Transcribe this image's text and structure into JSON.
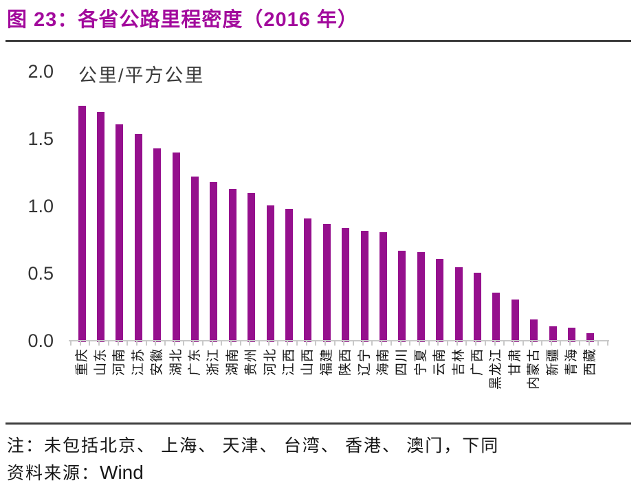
{
  "header": {
    "title": "图 23：各省公路里程密度（2016 年）"
  },
  "colors": {
    "title": "#A20A9C",
    "bar": "#95108D",
    "axis": "#C9C9C9",
    "rule": "#3D3D3D"
  },
  "chart_data": {
    "type": "bar",
    "title": "各省公路里程密度（2016 年）",
    "unit_label": "公里/平方公里",
    "xlabel": "",
    "ylabel": "公里/平方公里",
    "ylim": [
      0.0,
      2.0
    ],
    "yticks": [
      0.0,
      0.5,
      1.0,
      1.5,
      2.0
    ],
    "grid": false,
    "legend": false,
    "bar_color": "#95108D",
    "categories": [
      "重庆",
      "山东",
      "河南",
      "江苏",
      "安徽",
      "湖北",
      "广东",
      "浙江",
      "湖南",
      "贵州",
      "河北",
      "江西",
      "山西",
      "福建",
      "陕西",
      "辽宁",
      "海南",
      "四川",
      "宁夏",
      "云南",
      "吉林",
      "广西",
      "黑龙江",
      "甘肃",
      "内蒙古",
      "新疆",
      "青海",
      "西藏"
    ],
    "values": [
      1.75,
      1.7,
      1.61,
      1.54,
      1.43,
      1.4,
      1.22,
      1.18,
      1.13,
      1.1,
      1.01,
      0.98,
      0.91,
      0.87,
      0.84,
      0.82,
      0.81,
      0.67,
      0.66,
      0.61,
      0.55,
      0.51,
      0.36,
      0.31,
      0.16,
      0.11,
      0.1,
      0.06
    ]
  },
  "footer": {
    "note": "注：未包括北京、 上海、 天津、 台湾、 香港、 澳门，下同",
    "source_label": "资料来源：",
    "source_value": "Wind"
  }
}
